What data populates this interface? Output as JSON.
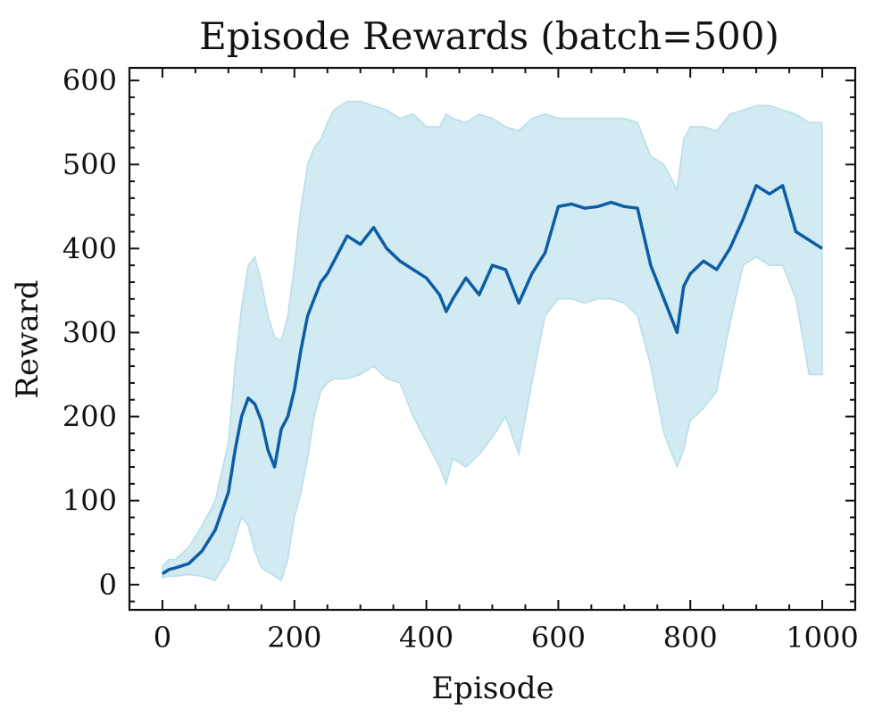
{
  "chart_data": {
    "type": "line",
    "title": "Episode Rewards (batch=500)",
    "xlabel": "Episode",
    "ylabel": "Reward",
    "xlim": [
      -50,
      1050
    ],
    "ylim": [
      -30,
      615
    ],
    "xticks": [
      0,
      200,
      400,
      600,
      800,
      1000
    ],
    "yticks": [
      0,
      100,
      200,
      300,
      400,
      500,
      600
    ],
    "xtick_labels": [
      "0",
      "200",
      "400",
      "600",
      "800",
      "1000"
    ],
    "ytick_labels": [
      "0",
      "100",
      "200",
      "300",
      "400",
      "500",
      "600"
    ],
    "grid": false,
    "series": [
      {
        "color": "#0c5da5",
        "x": [
          0,
          10,
          20,
          40,
          60,
          80,
          100,
          110,
          120,
          130,
          140,
          150,
          160,
          170,
          180,
          190,
          200,
          210,
          220,
          230,
          240,
          250,
          260,
          280,
          300,
          320,
          340,
          360,
          380,
          400,
          420,
          430,
          440,
          460,
          480,
          500,
          520,
          540,
          560,
          580,
          600,
          620,
          640,
          660,
          680,
          700,
          720,
          740,
          760,
          780,
          790,
          800,
          820,
          840,
          860,
          880,
          900,
          920,
          940,
          960,
          980,
          1000
        ],
        "y": [
          13,
          18,
          20,
          25,
          40,
          65,
          110,
          160,
          200,
          222,
          215,
          195,
          160,
          140,
          185,
          200,
          232,
          280,
          320,
          340,
          360,
          370,
          385,
          415,
          405,
          425,
          400,
          385,
          375,
          365,
          345,
          325,
          340,
          365,
          345,
          380,
          375,
          335,
          370,
          395,
          450,
          453,
          448,
          450,
          455,
          450,
          448,
          380,
          340,
          300,
          355,
          370,
          385,
          375,
          400,
          435,
          475,
          465,
          475,
          420,
          410,
          400
        ]
      }
    ],
    "band": {
      "color": "#add8e6",
      "x": [
        0,
        10,
        20,
        40,
        60,
        80,
        100,
        110,
        120,
        130,
        140,
        150,
        160,
        170,
        180,
        190,
        200,
        210,
        220,
        230,
        240,
        250,
        260,
        280,
        300,
        320,
        340,
        360,
        380,
        400,
        420,
        430,
        440,
        460,
        480,
        500,
        520,
        540,
        560,
        580,
        600,
        620,
        640,
        660,
        680,
        700,
        720,
        740,
        760,
        780,
        790,
        800,
        820,
        840,
        860,
        880,
        900,
        920,
        940,
        960,
        980,
        1000
      ],
      "upper": [
        22,
        30,
        30,
        45,
        70,
        100,
        170,
        260,
        330,
        380,
        390,
        360,
        320,
        295,
        290,
        320,
        380,
        450,
        500,
        520,
        530,
        550,
        565,
        575,
        575,
        570,
        565,
        555,
        560,
        545,
        545,
        560,
        555,
        550,
        560,
        555,
        545,
        540,
        555,
        560,
        555,
        555,
        555,
        555,
        555,
        555,
        550,
        510,
        500,
        470,
        530,
        545,
        545,
        540,
        560,
        565,
        570,
        570,
        565,
        560,
        550,
        550
      ],
      "lower": [
        8,
        10,
        10,
        12,
        10,
        5,
        30,
        55,
        80,
        70,
        40,
        20,
        15,
        10,
        5,
        30,
        80,
        110,
        150,
        200,
        230,
        240,
        245,
        245,
        250,
        260,
        245,
        240,
        200,
        170,
        140,
        120,
        150,
        140,
        155,
        175,
        200,
        155,
        240,
        320,
        340,
        340,
        335,
        340,
        340,
        335,
        320,
        260,
        180,
        140,
        160,
        195,
        210,
        230,
        310,
        380,
        390,
        380,
        380,
        340,
        250,
        250
      ]
    }
  }
}
